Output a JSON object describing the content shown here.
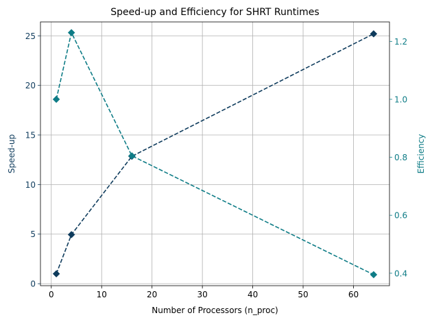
{
  "chart_data": {
    "type": "line",
    "title": "Speed-up and Efficiency for SHRT Runtimes",
    "xlabel": "Number of Processors (n_proc)",
    "xlim": [
      -2.15,
      67.15
    ],
    "xticks": [
      0,
      10,
      20,
      30,
      40,
      50,
      60
    ],
    "grid": true,
    "left_axis": {
      "label": "Speed-up",
      "color": "#0e3b5c",
      "ylim": [
        -0.2,
        26.4
      ],
      "ticks": [
        0,
        5,
        10,
        15,
        20,
        25
      ]
    },
    "right_axis": {
      "label": "Efficiency",
      "color": "#0e7c86",
      "ylim": [
        0.357,
        1.267
      ],
      "ticks": [
        0.4,
        0.6,
        0.8,
        1.0,
        1.2
      ]
    },
    "series": [
      {
        "axis": "left",
        "color": "#0e3b5c",
        "marker": "diamond",
        "linestyle": "dashed",
        "x": [
          1,
          4,
          16,
          64
        ],
        "y": [
          1.0,
          4.95,
          12.85,
          25.2
        ]
      },
      {
        "axis": "right",
        "color": "#0e7c86",
        "marker": "diamond",
        "linestyle": "dashed",
        "x": [
          1,
          4,
          16,
          64
        ],
        "y": [
          1.0,
          1.23,
          0.805,
          0.395
        ]
      }
    ]
  }
}
